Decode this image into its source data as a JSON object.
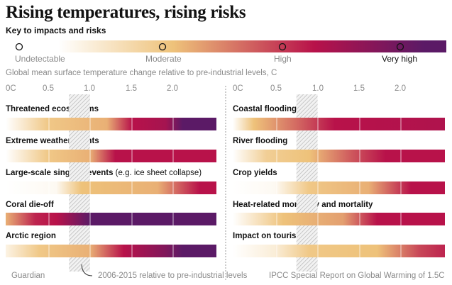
{
  "title": "Rising temperatures, rising risks",
  "key": {
    "title": "Key to impacts and risks",
    "levels": [
      "Undetectable",
      "Moderate",
      "High",
      "Very high"
    ]
  },
  "subtitle": "Global mean surface temperature change relative to pre-industrial levels, C",
  "footer": {
    "source_left": "Guardian",
    "band_note": "2006-2015 relative to pre-industrial levels",
    "source_right": "IPCC Special Report on Global Warming of 1.5C"
  },
  "colors": {
    "undetectable": "#ffffff",
    "moderate": "#eec27a",
    "high": "#b8124a",
    "very_high": "#5b1a66",
    "band": "#8a8a8a"
  },
  "chart_data": [
    {
      "type": "heatmap",
      "title": "",
      "xlabel": "Global mean surface temperature change relative to pre-industrial levels, C",
      "x_ticks": [
        "0C",
        "0.5",
        "1.0",
        "1.5",
        "2.0"
      ],
      "xlim": [
        0,
        2.5
      ],
      "band_range": [
        0.75,
        1.0
      ],
      "color_scale": "0 = Undetectable, 1 = Moderate, 2 = High, 3 = Very high",
      "series": [
        {
          "name": "Threatened ecosystems",
          "label_main": "Threatened ecosystems",
          "label_extra": "",
          "stops": [
            [
              0,
              0
            ],
            [
              0.5,
              0.9
            ],
            [
              1.2,
              1.1
            ],
            [
              1.5,
              2
            ],
            [
              1.9,
              2.2
            ],
            [
              2.1,
              3
            ],
            [
              2.5,
              3
            ]
          ]
        },
        {
          "name": "Extreme weather events",
          "label_main": "Extreme weather events",
          "label_extra": "",
          "stops": [
            [
              0,
              0
            ],
            [
              0.5,
              0.9
            ],
            [
              1.0,
              1.1
            ],
            [
              1.3,
              2
            ],
            [
              2.5,
              2
            ]
          ]
        },
        {
          "name": "Large-scale singular events (e.g. ice sheet collapse)",
          "label_main": "Large-scale singular events",
          "label_extra": " (e.g. ice sheet collapse)",
          "stops": [
            [
              0,
              0
            ],
            [
              0.6,
              0.1
            ],
            [
              0.9,
              1
            ],
            [
              1.8,
              1.1
            ],
            [
              2.3,
              2
            ],
            [
              2.5,
              2
            ]
          ]
        },
        {
          "name": "Coral die-off",
          "label_main": "Coral die-off",
          "label_extra": "",
          "stops": [
            [
              0,
              1.1
            ],
            [
              0.35,
              1.9
            ],
            [
              0.6,
              2
            ],
            [
              1.0,
              3
            ],
            [
              2.5,
              3
            ]
          ]
        },
        {
          "name": "Arctic region",
          "label_main": "Arctic region",
          "label_extra": "",
          "stops": [
            [
              0,
              0.2
            ],
            [
              0.4,
              0.9
            ],
            [
              1.0,
              1.1
            ],
            [
              1.4,
              2
            ],
            [
              1.9,
              2.6
            ],
            [
              2.1,
              3
            ],
            [
              2.5,
              3
            ]
          ]
        }
      ]
    },
    {
      "type": "heatmap",
      "title": "",
      "xlabel": "Global mean surface temperature change relative to pre-industrial levels, C",
      "x_ticks": [
        "0C",
        "0.5",
        "1.0",
        "1.5",
        "2.0"
      ],
      "xlim": [
        0,
        2.5
      ],
      "band_range": [
        0.75,
        1.0
      ],
      "color_scale": "0 = Undetectable, 1 = Moderate, 2 = High, 3 = Very high",
      "series": [
        {
          "name": "Coastal flooding",
          "label_main": "Coastal flooding",
          "label_extra": "",
          "stops": [
            [
              0,
              0
            ],
            [
              0.25,
              1
            ],
            [
              0.75,
              1.5
            ],
            [
              1.2,
              2
            ],
            [
              2.5,
              2.1
            ]
          ]
        },
        {
          "name": "River flooding",
          "label_main": "River flooding",
          "label_extra": "",
          "stops": [
            [
              0,
              0
            ],
            [
              0.4,
              0.8
            ],
            [
              0.9,
              1
            ],
            [
              1.4,
              1.6
            ],
            [
              1.8,
              2
            ],
            [
              2.5,
              2
            ]
          ]
        },
        {
          "name": "Crop yields",
          "label_main": "Crop yields",
          "label_extra": "",
          "stops": [
            [
              0,
              0
            ],
            [
              0.5,
              0.1
            ],
            [
              0.9,
              0.9
            ],
            [
              1.6,
              1.1
            ],
            [
              2.1,
              2
            ],
            [
              2.5,
              2
            ]
          ]
        },
        {
          "name": "Heat-related morbidity and mortality",
          "label_main": "Heat-related morbidity and mortality",
          "label_extra": "",
          "stops": [
            [
              0,
              0
            ],
            [
              0.6,
              1
            ],
            [
              1.3,
              1.2
            ],
            [
              1.7,
              2
            ],
            [
              2.5,
              2
            ]
          ]
        },
        {
          "name": "Impact on tourism",
          "label_main": "Impact on tourism",
          "label_extra": "",
          "stops": [
            [
              0,
              0
            ],
            [
              0.5,
              0.3
            ],
            [
              0.9,
              0.9
            ],
            [
              1.7,
              1
            ],
            [
              2.2,
              1.7
            ],
            [
              2.5,
              1.9
            ]
          ]
        }
      ]
    }
  ]
}
